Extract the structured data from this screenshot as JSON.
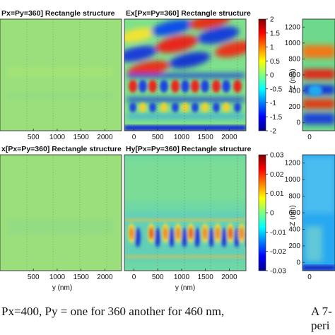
{
  "caption_left": "Px=400, Py = one for 360 another for 460 nm,",
  "caption_right_line1": "A 7-",
  "caption_right_line2": "peri",
  "colors": {
    "blue": "#0a14b4",
    "cyan": "#3ec8f0",
    "green": "#9ce07a",
    "yellow": "#f0e632",
    "red": "#c8160c"
  },
  "chart_data": [
    {
      "type": "heatmap",
      "title": "Px=Py=360] Rectangle structure",
      "xlabel": "",
      "x_ticks": [
        "500",
        "1000",
        "1500",
        "2000"
      ],
      "xlim": [
        -200,
        2350
      ]
    },
    {
      "type": "heatmap",
      "title": "Ex[Px=Py=360] Rectangle structure",
      "xlabel": "",
      "x_ticks": [
        "0",
        "500",
        "1000",
        "1500",
        "2000"
      ],
      "xlim": [
        -200,
        2350
      ],
      "colorbar": {
        "ticks": [
          "2",
          "1.5",
          "1",
          "0.5",
          "0",
          "-0.5",
          "-1",
          "-1.5",
          "-2"
        ],
        "range": [
          -2,
          2
        ]
      }
    },
    {
      "type": "heatmap",
      "xlabel": "",
      "ylabel": "Z (nm)",
      "y_ticks": [
        "1200",
        "1000",
        "800",
        "600",
        "400",
        "200",
        "0"
      ],
      "ylim": [
        -100,
        1300
      ],
      "x_ticks": [
        "0"
      ]
    },
    {
      "type": "heatmap",
      "title": "x[Px=Py=360] Rectangle structure",
      "xlabel": "y (nm)",
      "x_ticks": [
        "500",
        "1000",
        "1500",
        "2000"
      ],
      "xlim": [
        -200,
        2350
      ]
    },
    {
      "type": "heatmap",
      "title": "Hy[Px=Py=360] Rectangle structure",
      "xlabel": "y (nm)",
      "x_ticks": [
        "0",
        "500",
        "1000",
        "1500",
        "2000"
      ],
      "xlim": [
        -200,
        2350
      ],
      "colorbar": {
        "ticks": [
          "0.03",
          "0.02",
          "0.01",
          "0",
          "-0.01",
          "-0.02",
          "-0.03"
        ],
        "range": [
          -0.03,
          0.03
        ]
      }
    },
    {
      "type": "heatmap",
      "xlabel": "",
      "ylabel": "Z (nm)",
      "y_ticks": [
        "1200",
        "1000",
        "800",
        "600",
        "400",
        "200",
        "0"
      ],
      "ylim": [
        -100,
        1300
      ],
      "x_ticks": [
        "0"
      ]
    }
  ]
}
